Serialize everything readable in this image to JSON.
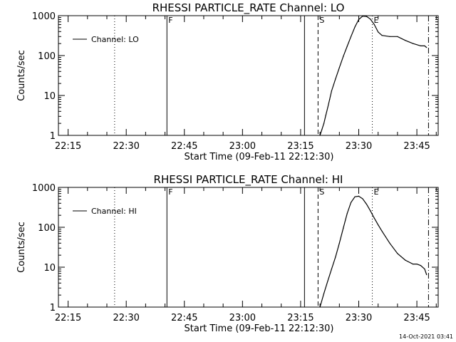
{
  "timestamp": "14-Oct-2021 03:41",
  "chart_data": [
    {
      "type": "line",
      "title": "RHESSI PARTICLE_RATE Channel: LO",
      "xlabel": "Start Time (09-Feb-11 22:12:30)",
      "ylabel": "Counts/sec",
      "x_ticks": [
        "22:15",
        "22:30",
        "22:45",
        "23:00",
        "23:15",
        "23:30",
        "23:45"
      ],
      "y_ticks": [
        "1",
        "10",
        "100",
        "1000"
      ],
      "y_scale": "log",
      "ylim": [
        1,
        1000
      ],
      "xlim": [
        "22:12:30",
        "23:50:30"
      ],
      "grid": false,
      "legend_position": "top-left",
      "series": [
        {
          "name": "Channel: LO",
          "x": [
            "23:20:00",
            "23:20:30",
            "23:21:00",
            "23:21:30",
            "23:22:00",
            "23:22:30",
            "23:23:00",
            "23:24:00",
            "23:25:00",
            "23:26:00",
            "23:27:00",
            "23:28:00",
            "23:29:00",
            "23:30:00",
            "23:31:00",
            "23:32:00",
            "23:33:00",
            "23:34:00",
            "23:35:00",
            "23:36:00",
            "23:38:00",
            "23:40:00",
            "23:42:00",
            "23:44:00",
            "23:46:00",
            "23:47:00",
            "23:47:30"
          ],
          "values": [
            1,
            1.4,
            2,
            3.2,
            5,
            8,
            13,
            26,
            50,
            95,
            170,
            300,
            520,
            800,
            970,
            960,
            820,
            600,
            390,
            320,
            300,
            300,
            240,
            200,
            175,
            175,
            160
          ]
        }
      ],
      "markers": [
        {
          "label": "",
          "time": "22:27:00",
          "style": "dotted"
        },
        {
          "label": "F",
          "time": "22:40:30",
          "style": "solid"
        },
        {
          "label": "",
          "time": "23:16:00",
          "style": "solid"
        },
        {
          "label": "S",
          "time": "23:19:30",
          "style": "dashed"
        },
        {
          "label": "E",
          "time": "23:33:30",
          "style": "dotted"
        },
        {
          "label": "",
          "time": "23:48:00",
          "style": "dashdot"
        }
      ]
    },
    {
      "type": "line",
      "title": "RHESSI PARTICLE_RATE Channel: HI",
      "xlabel": "Start Time (09-Feb-11 22:12:30)",
      "ylabel": "Counts/sec",
      "x_ticks": [
        "22:15",
        "22:30",
        "22:45",
        "23:00",
        "23:15",
        "23:30",
        "23:45"
      ],
      "y_ticks": [
        "1",
        "10",
        "100",
        "1000"
      ],
      "y_scale": "log",
      "ylim": [
        1,
        1000
      ],
      "xlim": [
        "22:12:30",
        "23:50:30"
      ],
      "grid": false,
      "legend_position": "top-left",
      "series": [
        {
          "name": "Channel: HI",
          "x": [
            "23:20:00",
            "23:21:00",
            "23:22:00",
            "23:23:00",
            "23:24:00",
            "23:25:00",
            "23:26:00",
            "23:27:00",
            "23:28:00",
            "23:29:00",
            "23:30:00",
            "23:31:00",
            "23:32:00",
            "23:33:00",
            "23:34:00",
            "23:35:00",
            "23:36:00",
            "23:38:00",
            "23:40:00",
            "23:42:00",
            "23:44:00",
            "23:45:00",
            "23:46:00",
            "23:47:00",
            "23:47:30"
          ],
          "values": [
            1,
            2.2,
            4.5,
            9,
            18,
            40,
            95,
            220,
            420,
            580,
            600,
            520,
            380,
            260,
            170,
            115,
            80,
            40,
            22,
            15,
            12,
            12,
            11,
            9,
            6.5
          ]
        }
      ],
      "markers": [
        {
          "label": "",
          "time": "22:27:00",
          "style": "dotted"
        },
        {
          "label": "F",
          "time": "22:40:30",
          "style": "solid"
        },
        {
          "label": "",
          "time": "23:16:00",
          "style": "solid"
        },
        {
          "label": "S",
          "time": "23:19:30",
          "style": "dashed"
        },
        {
          "label": "E",
          "time": "23:33:30",
          "style": "dotted"
        },
        {
          "label": "",
          "time": "23:48:00",
          "style": "dashdot"
        }
      ]
    }
  ]
}
